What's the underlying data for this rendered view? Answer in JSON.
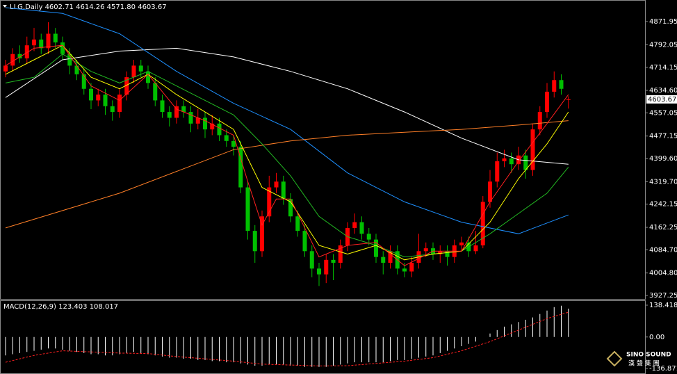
{
  "chart_data": [
    {
      "type": "candlestick",
      "title": "LLG,Daily",
      "ohlc_labels": [
        "4602.71",
        "4614.26",
        "4571.80",
        "4603.67"
      ],
      "up_color": "#ff0000",
      "down_color": "#00c000",
      "open": [
        4700,
        4720,
        4760,
        4745,
        4790,
        4810,
        4780,
        4830,
        4800,
        4760,
        4720,
        4690,
        4640,
        4600,
        4620,
        4580,
        4560,
        4620,
        4680,
        4720,
        4700,
        4660,
        4600,
        4560,
        4540,
        4580,
        4560,
        4520,
        4540,
        4500,
        4520,
        4480,
        4460,
        4440,
        4300,
        4150,
        4080,
        4200,
        4300,
        4320,
        4260,
        4200,
        4150,
        4080,
        4020,
        4000,
        4050,
        4040,
        4100,
        4160,
        4180,
        4140,
        4120,
        4060,
        4040,
        4080,
        4020,
        4010,
        4040,
        4080,
        4090,
        4070,
        4080,
        4060,
        4100,
        4110,
        4080,
        4100,
        4250,
        4320,
        4390,
        4400,
        4380,
        4410,
        4360,
        4500,
        4560,
        4630,
        4670,
        4602.71
      ],
      "high": [
        4740,
        4780,
        4790,
        4820,
        4850,
        4830,
        4870,
        4850,
        4820,
        4780,
        4740,
        4710,
        4660,
        4640,
        4640,
        4600,
        4640,
        4700,
        4740,
        4740,
        4720,
        4680,
        4620,
        4580,
        4600,
        4600,
        4580,
        4570,
        4560,
        4550,
        4540,
        4500,
        4480,
        4460,
        4320,
        4170,
        4220,
        4340,
        4350,
        4340,
        4280,
        4220,
        4170,
        4100,
        4040,
        4070,
        4070,
        4120,
        4180,
        4210,
        4200,
        4160,
        4140,
        4080,
        4100,
        4100,
        4040,
        4060,
        4140,
        4110,
        4110,
        4100,
        4100,
        4120,
        4130,
        4130,
        4150,
        4270,
        4360,
        4420,
        4430,
        4420,
        4440,
        4430,
        4520,
        4580,
        4660,
        4700,
        4690,
        4614.26
      ],
      "low": [
        4680,
        4700,
        4730,
        4725,
        4770,
        4760,
        4760,
        4780,
        4740,
        4690,
        4670,
        4620,
        4570,
        4580,
        4550,
        4530,
        4540,
        4600,
        4660,
        4680,
        4640,
        4580,
        4540,
        4510,
        4520,
        4540,
        4490,
        4500,
        4470,
        4480,
        4460,
        4440,
        4410,
        4280,
        4120,
        4040,
        4060,
        4180,
        4280,
        4240,
        4180,
        4130,
        4060,
        3990,
        3960,
        3970,
        3980,
        4020,
        4080,
        4140,
        4120,
        4100,
        4040,
        4000,
        4020,
        4000,
        3990,
        3990,
        4020,
        4060,
        4050,
        4040,
        4030,
        4040,
        4080,
        4060,
        4070,
        4090,
        4230,
        4300,
        4370,
        4350,
        4360,
        4330,
        4340,
        4480,
        4540,
        4610,
        4620,
        4571.8
      ],
      "close": [
        4720,
        4760,
        4745,
        4790,
        4810,
        4780,
        4830,
        4800,
        4760,
        4720,
        4690,
        4640,
        4600,
        4620,
        4580,
        4560,
        4620,
        4680,
        4720,
        4700,
        4660,
        4600,
        4560,
        4540,
        4580,
        4560,
        4520,
        4540,
        4500,
        4520,
        4480,
        4460,
        4440,
        4300,
        4150,
        4080,
        4200,
        4300,
        4320,
        4260,
        4200,
        4150,
        4080,
        4020,
        4000,
        4050,
        4040,
        4100,
        4160,
        4180,
        4140,
        4120,
        4060,
        4040,
        4080,
        4020,
        4010,
        4040,
        4080,
        4090,
        4070,
        4080,
        4060,
        4100,
        4110,
        4080,
        4100,
        4250,
        4320,
        4390,
        4400,
        4380,
        4410,
        4360,
        4500,
        4560,
        4630,
        4670,
        4640,
        4603.67
      ],
      "overlays": [
        {
          "color": "#ffffff",
          "x": [
            0,
            8,
            16,
            24,
            32,
            40,
            48,
            56,
            64,
            72,
            79
          ],
          "values": [
            4610,
            4740,
            4770,
            4780,
            4750,
            4700,
            4640,
            4560,
            4470,
            4395,
            4380
          ]
        },
        {
          "color": "#1e90ff",
          "x": [
            0,
            8,
            16,
            24,
            32,
            40,
            48,
            56,
            64,
            72,
            79
          ],
          "values": [
            4920,
            4900,
            4830,
            4700,
            4590,
            4500,
            4350,
            4250,
            4180,
            4140,
            4205
          ]
        },
        {
          "color": "#ff7f27",
          "x": [
            0,
            16,
            32,
            40,
            48,
            56,
            64,
            72,
            79
          ],
          "values": [
            4160,
            4280,
            4430,
            4460,
            4480,
            4490,
            4500,
            4515,
            4530
          ]
        },
        {
          "color": "#22b822",
          "x": [
            0,
            4,
            8,
            12,
            16,
            20,
            24,
            28,
            32,
            36,
            40,
            44,
            48,
            52,
            56,
            60,
            64,
            68,
            72,
            76,
            79
          ],
          "values": [
            4660,
            4680,
            4760,
            4700,
            4660,
            4700,
            4650,
            4600,
            4550,
            4450,
            4340,
            4200,
            4130,
            4100,
            4060,
            4070,
            4080,
            4140,
            4210,
            4280,
            4370
          ]
        },
        {
          "color": "#ffff00",
          "x": [
            0,
            4,
            8,
            12,
            16,
            20,
            24,
            28,
            32,
            36,
            40,
            44,
            48,
            52,
            56,
            60,
            64,
            68,
            72,
            76,
            79
          ],
          "values": [
            4690,
            4740,
            4790,
            4680,
            4640,
            4690,
            4620,
            4560,
            4500,
            4300,
            4250,
            4100,
            4070,
            4100,
            4050,
            4070,
            4080,
            4180,
            4330,
            4450,
            4560
          ]
        },
        {
          "color": "#ff2020",
          "x": [
            0,
            4,
            8,
            12,
            16,
            20,
            24,
            28,
            32,
            34,
            36,
            38,
            40,
            44,
            48,
            52,
            56,
            60,
            64,
            68,
            72,
            76,
            79
          ],
          "values": [
            4720,
            4780,
            4790,
            4650,
            4600,
            4690,
            4570,
            4530,
            4480,
            4320,
            4170,
            4260,
            4260,
            4060,
            4100,
            4110,
            4030,
            4080,
            4080,
            4250,
            4390,
            4520,
            4620
          ]
        }
      ],
      "ylim": [
        3915.3,
        4946.3
      ],
      "yticks": [
        4871.95,
        4792.05,
        4714.15,
        {
          "value": 4634.6,
          "label": "4634.60"
        },
        4557.05,
        4477.15,
        {
          "value": 4399.6,
          "label": "4399.60"
        },
        {
          "value": 4319.7,
          "label": "4319.70"
        },
        4242.15,
        4162.25,
        {
          "value": 4084.7,
          "label": "4084.70"
        },
        {
          "value": 4004.8,
          "label": "4004.80"
        },
        3927.25
      ]
    },
    {
      "type": "macd",
      "title": "MACD(12,26,9)",
      "color": "#ffffff",
      "values": [
        -80,
        -75,
        -70,
        -65,
        -60,
        -55,
        -50,
        -50,
        -55,
        -60,
        -65,
        -70,
        -75,
        -75,
        -80,
        -80,
        -75,
        -70,
        -65,
        -70,
        -75,
        -80,
        -85,
        -90,
        -90,
        -95,
        -95,
        -100,
        -100,
        -105,
        -105,
        -110,
        -110,
        -115,
        -120,
        -125,
        -125,
        -120,
        -120,
        -120,
        -125,
        -125,
        -130,
        -130,
        -130,
        -130,
        -125,
        -120,
        -115,
        -110,
        -110,
        -110,
        -110,
        -110,
        -105,
        -100,
        -100,
        -95,
        -90,
        -85,
        -80,
        -70,
        -60,
        -50,
        -40,
        -30,
        -20,
        0,
        15,
        30,
        45,
        55,
        65,
        75,
        85,
        100,
        115,
        130,
        136,
        123.403
      ],
      "overlays": [
        {
          "color": "#ff2020",
          "dashed": true,
          "x": [
            0,
            4,
            8,
            12,
            16,
            20,
            24,
            28,
            32,
            36,
            40,
            44,
            48,
            52,
            56,
            60,
            64,
            68,
            72,
            76,
            79
          ],
          "values": [
            -110,
            -80,
            -60,
            -65,
            -70,
            -72,
            -85,
            -95,
            -105,
            -118,
            -122,
            -126,
            -125,
            -115,
            -105,
            -90,
            -60,
            -20,
            30,
            80,
            108.017
          ]
        }
      ],
      "ylim": [
        -161.07,
        159.6
      ],
      "yticks": [
        138.418,
        {
          "value": 0,
          "label": "0.00"
        },
        -136.871
      ]
    }
  ],
  "watermark": {
    "brand": "SINO SOUND",
    "sub": "漢 聲 集 團"
  }
}
